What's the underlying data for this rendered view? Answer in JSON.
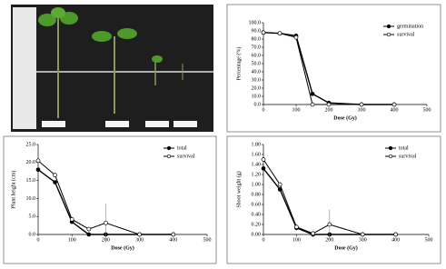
{
  "chart_data": [
    {
      "type": "line",
      "xlabel": "Dose (Gy)",
      "ylabel": "Percentage (%)",
      "x": [
        0,
        50,
        100,
        150,
        200,
        300,
        400
      ],
      "series": [
        {
          "name": "germination",
          "color": "#000000",
          "marker_fill": "#000000",
          "values": [
            88,
            87,
            84,
            13,
            2,
            0,
            0
          ]
        },
        {
          "name": "survival",
          "color": "#000000",
          "marker_fill": "#ffffff",
          "values": [
            88,
            87,
            82,
            0,
            0,
            0,
            0
          ]
        }
      ],
      "xlim": [
        0,
        500
      ],
      "xticks": [
        0,
        100,
        200,
        300,
        400,
        500
      ],
      "ylim": [
        0,
        100
      ],
      "yticks": [
        {
          "value": 0,
          "label": "0.0"
        },
        {
          "value": 10,
          "label": "10.0"
        },
        {
          "value": 20,
          "label": "20.0"
        },
        {
          "value": 30,
          "label": "30.0"
        },
        {
          "value": 40,
          "label": "40.0"
        },
        {
          "value": 50,
          "label": "50.0"
        },
        {
          "value": 60,
          "label": "60.0"
        },
        {
          "value": 70,
          "label": "70.0"
        },
        {
          "value": 80,
          "label": "80.0"
        },
        {
          "value": 90,
          "label": "90.0"
        },
        {
          "value": 100,
          "label": "100.0"
        }
      ]
    },
    {
      "type": "line",
      "xlabel": "Dose (Gy)",
      "ylabel": "Plant height (cm)",
      "x": [
        0,
        50,
        100,
        150,
        200,
        300,
        400
      ],
      "series": [
        {
          "name": "total",
          "color": "#000000",
          "marker_fill": "#000000",
          "values": [
            18,
            14.5,
            3.5,
            0,
            0,
            0,
            0
          ]
        },
        {
          "name": "survival",
          "color": "#000000",
          "marker_fill": "#ffffff",
          "values": [
            20.5,
            16.5,
            4.2,
            1.5,
            3.2,
            0,
            0
          ],
          "errors": [
            null,
            null,
            null,
            null,
            5.3,
            null,
            null
          ]
        }
      ],
      "xlim": [
        0,
        500
      ],
      "xticks": [
        0,
        100,
        200,
        300,
        400,
        500
      ],
      "ylim": [
        0,
        25
      ],
      "yticks": [
        {
          "value": 0,
          "label": "0.0"
        },
        {
          "value": 5,
          "label": "5.0"
        },
        {
          "value": 10,
          "label": "10.0"
        },
        {
          "value": 15,
          "label": "15.0"
        },
        {
          "value": 20,
          "label": "20.0"
        },
        {
          "value": 25,
          "label": "25.0"
        }
      ]
    },
    {
      "type": "line",
      "xlabel": "Dose (Gy)",
      "ylabel": "Shoot weight (g)",
      "x": [
        0,
        50,
        100,
        150,
        200,
        300,
        400
      ],
      "series": [
        {
          "name": "total",
          "color": "#000000",
          "marker_fill": "#000000",
          "values": [
            1.32,
            0.9,
            0.13,
            0,
            0,
            0,
            0
          ]
        },
        {
          "name": "survival",
          "color": "#000000",
          "marker_fill": "#ffffff",
          "values": [
            1.5,
            1.0,
            0.15,
            0.02,
            0.2,
            0,
            0
          ],
          "errors": [
            null,
            null,
            null,
            null,
            0.3,
            null,
            null
          ]
        }
      ],
      "xlim": [
        0,
        500
      ],
      "xticks": [
        0,
        100,
        200,
        300,
        400,
        500
      ],
      "ylim": [
        0,
        1.8
      ],
      "yticks": [
        {
          "value": 0,
          "label": "0.00"
        },
        {
          "value": 0.2,
          "label": "0.20"
        },
        {
          "value": 0.4,
          "label": "0.40"
        },
        {
          "value": 0.6,
          "label": "0.60"
        },
        {
          "value": 0.8,
          "label": "0.80"
        },
        {
          "value": 1.0,
          "label": "1.00"
        },
        {
          "value": 1.2,
          "label": "1.20"
        },
        {
          "value": 1.4,
          "label": "1.40"
        },
        {
          "value": 1.6,
          "label": "1.60"
        },
        {
          "value": 1.8,
          "label": "1.80"
        }
      ]
    }
  ]
}
